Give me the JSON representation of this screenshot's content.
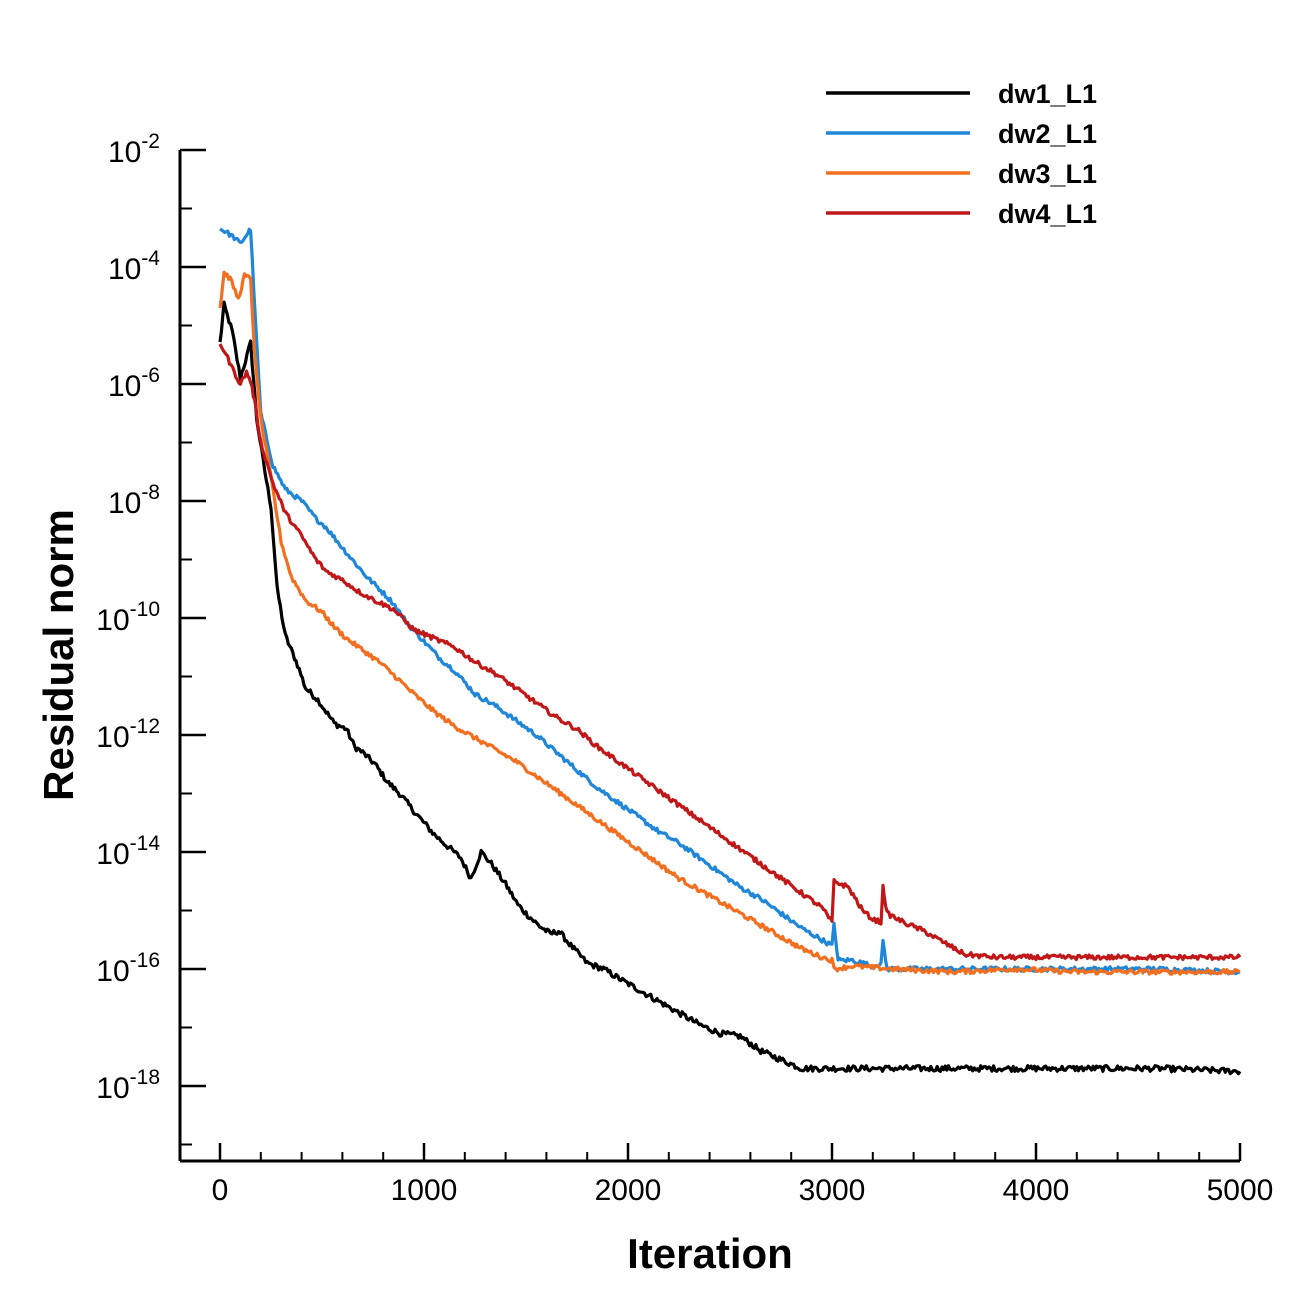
{
  "chart_data": {
    "type": "line",
    "title": "",
    "xlabel": "Iteration",
    "ylabel": "Residual norm",
    "yscale": "log",
    "xlim": [
      -200,
      5000
    ],
    "ylim_exp": [
      -19.25,
      -2
    ],
    "x_ticks": [
      0,
      1000,
      2000,
      3000,
      4000,
      5000
    ],
    "x_tick_labels": [
      "0",
      "1000",
      "2000",
      "3000",
      "4000",
      "5000"
    ],
    "y_tick_exps": [
      -2,
      -4,
      -6,
      -8,
      -10,
      -12,
      -14,
      -16,
      -18
    ],
    "y_tick_labels": [
      {
        "base": "10",
        "exp": "-2"
      },
      {
        "base": "10",
        "exp": "-4"
      },
      {
        "base": "10",
        "exp": "-6"
      },
      {
        "base": "10",
        "exp": "-8"
      },
      {
        "base": "10",
        "exp": "-10"
      },
      {
        "base": "10",
        "exp": "-12"
      },
      {
        "base": "10",
        "exp": "-14"
      },
      {
        "base": "10",
        "exp": "-16"
      },
      {
        "base": "10",
        "exp": "-18"
      }
    ],
    "legend_position": "top-right",
    "series": [
      {
        "name": "dw1_L1",
        "color": "#000000",
        "noise": 0.05,
        "points": [
          [
            0,
            -5.3
          ],
          [
            20,
            -4.65
          ],
          [
            60,
            -5.1
          ],
          [
            100,
            -5.9
          ],
          [
            150,
            -5.3
          ],
          [
            180,
            -6.6
          ],
          [
            220,
            -7.5
          ],
          [
            250,
            -8.1
          ],
          [
            280,
            -9.5
          ],
          [
            320,
            -10.3
          ],
          [
            380,
            -10.8
          ],
          [
            420,
            -11.2
          ],
          [
            480,
            -11.4
          ],
          [
            520,
            -11.6
          ],
          [
            560,
            -11.8
          ],
          [
            620,
            -11.9
          ],
          [
            660,
            -12.2
          ],
          [
            700,
            -12.3
          ],
          [
            760,
            -12.5
          ],
          [
            820,
            -12.8
          ],
          [
            880,
            -13.0
          ],
          [
            950,
            -13.3
          ],
          [
            1050,
            -13.7
          ],
          [
            1180,
            -14.1
          ],
          [
            1230,
            -14.45
          ],
          [
            1280,
            -14.0
          ],
          [
            1330,
            -14.2
          ],
          [
            1400,
            -14.55
          ],
          [
            1460,
            -14.9
          ],
          [
            1500,
            -15.05
          ],
          [
            1560,
            -15.25
          ],
          [
            1620,
            -15.4
          ],
          [
            1660,
            -15.35
          ],
          [
            1720,
            -15.6
          ],
          [
            1800,
            -15.9
          ],
          [
            1880,
            -16.0
          ],
          [
            1950,
            -16.15
          ],
          [
            2050,
            -16.35
          ],
          [
            2150,
            -16.55
          ],
          [
            2250,
            -16.75
          ],
          [
            2350,
            -16.95
          ],
          [
            2450,
            -17.1
          ],
          [
            2550,
            -17.15
          ],
          [
            2650,
            -17.4
          ],
          [
            2750,
            -17.55
          ],
          [
            2850,
            -17.7
          ],
          [
            3000,
            -17.7
          ],
          [
            3200,
            -17.7
          ],
          [
            3500,
            -17.7
          ],
          [
            3800,
            -17.7
          ],
          [
            4200,
            -17.7
          ],
          [
            4600,
            -17.7
          ],
          [
            5000,
            -17.75
          ]
        ]
      },
      {
        "name": "dw2_L1",
        "color": "#1f86d8",
        "noise": 0.04,
        "points": [
          [
            0,
            -3.35
          ],
          [
            30,
            -3.4
          ],
          [
            70,
            -3.5
          ],
          [
            100,
            -3.6
          ],
          [
            130,
            -3.45
          ],
          [
            150,
            -3.35
          ],
          [
            175,
            -5.0
          ],
          [
            200,
            -6.5
          ],
          [
            260,
            -7.4
          ],
          [
            320,
            -7.8
          ],
          [
            400,
            -8.0
          ],
          [
            470,
            -8.3
          ],
          [
            520,
            -8.45
          ],
          [
            600,
            -8.8
          ],
          [
            660,
            -9.05
          ],
          [
            720,
            -9.3
          ],
          [
            780,
            -9.5
          ],
          [
            850,
            -9.75
          ],
          [
            920,
            -10.1
          ],
          [
            1000,
            -10.4
          ],
          [
            1080,
            -10.7
          ],
          [
            1150,
            -10.9
          ],
          [
            1250,
            -11.3
          ],
          [
            1350,
            -11.5
          ],
          [
            1450,
            -11.75
          ],
          [
            1550,
            -12.0
          ],
          [
            1650,
            -12.3
          ],
          [
            1750,
            -12.6
          ],
          [
            1850,
            -12.9
          ],
          [
            1950,
            -13.15
          ],
          [
            2050,
            -13.4
          ],
          [
            2150,
            -13.65
          ],
          [
            2250,
            -13.85
          ],
          [
            2350,
            -14.1
          ],
          [
            2450,
            -14.35
          ],
          [
            2550,
            -14.6
          ],
          [
            2650,
            -14.8
          ],
          [
            2750,
            -15.05
          ],
          [
            2850,
            -15.3
          ],
          [
            2950,
            -15.5
          ],
          [
            3000,
            -15.6
          ],
          [
            3010,
            -15.25
          ],
          [
            3030,
            -15.85
          ],
          [
            3100,
            -15.85
          ],
          [
            3200,
            -15.95
          ],
          [
            3240,
            -15.9
          ],
          [
            3250,
            -15.55
          ],
          [
            3270,
            -16.0
          ],
          [
            3400,
            -16.0
          ],
          [
            3600,
            -16.0
          ],
          [
            3800,
            -16.0
          ],
          [
            4000,
            -16.0
          ],
          [
            4300,
            -16.0
          ],
          [
            4600,
            -16.0
          ],
          [
            5000,
            -16.05
          ]
        ]
      },
      {
        "name": "dw3_L1",
        "color": "#f26f1f",
        "noise": 0.04,
        "points": [
          [
            0,
            -4.7
          ],
          [
            20,
            -4.1
          ],
          [
            50,
            -4.2
          ],
          [
            90,
            -4.55
          ],
          [
            120,
            -4.15
          ],
          [
            150,
            -4.2
          ],
          [
            170,
            -5.5
          ],
          [
            200,
            -6.6
          ],
          [
            250,
            -7.6
          ],
          [
            300,
            -8.7
          ],
          [
            350,
            -9.3
          ],
          [
            420,
            -9.7
          ],
          [
            500,
            -9.9
          ],
          [
            560,
            -10.15
          ],
          [
            620,
            -10.35
          ],
          [
            700,
            -10.55
          ],
          [
            780,
            -10.75
          ],
          [
            860,
            -11.0
          ],
          [
            950,
            -11.3
          ],
          [
            1050,
            -11.6
          ],
          [
            1150,
            -11.85
          ],
          [
            1250,
            -12.05
          ],
          [
            1350,
            -12.25
          ],
          [
            1450,
            -12.45
          ],
          [
            1550,
            -12.7
          ],
          [
            1650,
            -12.95
          ],
          [
            1750,
            -13.2
          ],
          [
            1850,
            -13.45
          ],
          [
            1950,
            -13.7
          ],
          [
            2050,
            -13.95
          ],
          [
            2150,
            -14.2
          ],
          [
            2250,
            -14.45
          ],
          [
            2350,
            -14.65
          ],
          [
            2450,
            -14.85
          ],
          [
            2550,
            -15.05
          ],
          [
            2650,
            -15.25
          ],
          [
            2750,
            -15.45
          ],
          [
            2850,
            -15.65
          ],
          [
            2950,
            -15.8
          ],
          [
            3000,
            -15.85
          ],
          [
            3010,
            -16.0
          ],
          [
            3100,
            -15.95
          ],
          [
            3300,
            -16.0
          ],
          [
            3600,
            -16.05
          ],
          [
            3900,
            -16.0
          ],
          [
            4200,
            -16.05
          ],
          [
            4500,
            -16.05
          ],
          [
            5000,
            -16.05
          ]
        ]
      },
      {
        "name": "dw4_L1",
        "color": "#c01818",
        "noise": 0.04,
        "points": [
          [
            0,
            -5.3
          ],
          [
            30,
            -5.5
          ],
          [
            70,
            -5.8
          ],
          [
            100,
            -6.0
          ],
          [
            130,
            -5.8
          ],
          [
            150,
            -5.95
          ],
          [
            170,
            -6.3
          ],
          [
            200,
            -7.0
          ],
          [
            260,
            -7.7
          ],
          [
            320,
            -8.2
          ],
          [
            400,
            -8.6
          ],
          [
            470,
            -9.0
          ],
          [
            520,
            -9.2
          ],
          [
            600,
            -9.35
          ],
          [
            680,
            -9.55
          ],
          [
            760,
            -9.7
          ],
          [
            850,
            -9.85
          ],
          [
            950,
            -10.2
          ],
          [
            1050,
            -10.35
          ],
          [
            1150,
            -10.5
          ],
          [
            1250,
            -10.75
          ],
          [
            1350,
            -10.95
          ],
          [
            1450,
            -11.2
          ],
          [
            1550,
            -11.45
          ],
          [
            1650,
            -11.7
          ],
          [
            1750,
            -11.9
          ],
          [
            1850,
            -12.2
          ],
          [
            1950,
            -12.45
          ],
          [
            2050,
            -12.7
          ],
          [
            2150,
            -12.95
          ],
          [
            2250,
            -13.2
          ],
          [
            2350,
            -13.45
          ],
          [
            2450,
            -13.7
          ],
          [
            2550,
            -13.95
          ],
          [
            2650,
            -14.2
          ],
          [
            2750,
            -14.45
          ],
          [
            2850,
            -14.7
          ],
          [
            2950,
            -14.95
          ],
          [
            3000,
            -15.2
          ],
          [
            3010,
            -14.5
          ],
          [
            3080,
            -14.6
          ],
          [
            3150,
            -15.0
          ],
          [
            3200,
            -15.15
          ],
          [
            3240,
            -15.2
          ],
          [
            3250,
            -14.6
          ],
          [
            3270,
            -15.05
          ],
          [
            3350,
            -15.2
          ],
          [
            3450,
            -15.35
          ],
          [
            3550,
            -15.55
          ],
          [
            3650,
            -15.75
          ],
          [
            3800,
            -15.8
          ],
          [
            4000,
            -15.8
          ],
          [
            4300,
            -15.8
          ],
          [
            4600,
            -15.8
          ],
          [
            5000,
            -15.8
          ]
        ]
      }
    ]
  }
}
